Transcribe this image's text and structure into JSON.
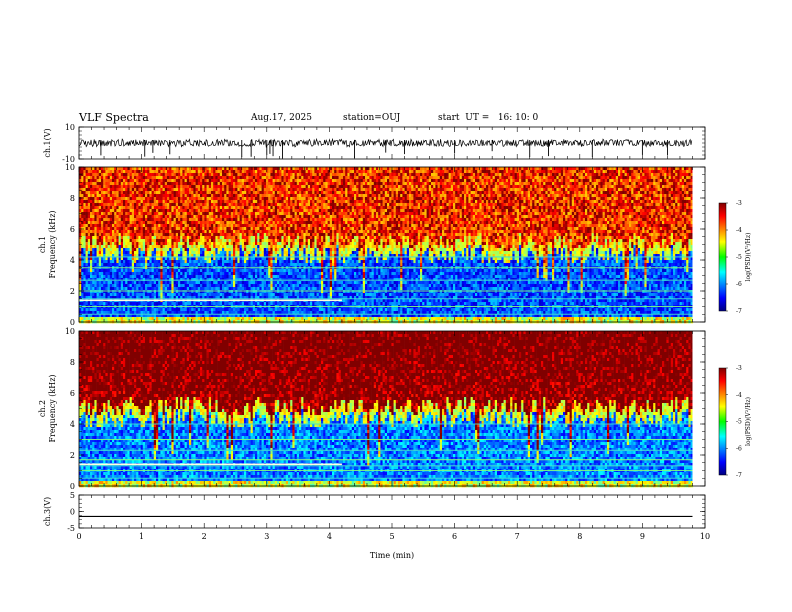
{
  "header": {
    "title": "VLF Spectra",
    "date": "Aug.17, 2025",
    "station": "station=OUJ",
    "start": "start  UT =   16: 10: 0"
  },
  "chart_data": [
    {
      "type": "line",
      "panel": "ch1-waveform",
      "ylabel": "ch.1(V)",
      "ylim": [
        -10,
        10
      ],
      "yticks": [
        "10",
        "-10"
      ],
      "xlim": [
        0,
        10
      ],
      "series": [
        {
          "values": "noisy waveform about 0 V with spikes, 0–9.8 min"
        }
      ],
      "color": "#000000"
    },
    {
      "type": "heatmap",
      "panel": "ch1-spectrogram",
      "ylabel": "ch.1\nFrequency (kHz)",
      "ylim": [
        0,
        10
      ],
      "yticks": [
        "0",
        "2",
        "4",
        "6",
        "8",
        "10"
      ],
      "xlim": [
        0,
        10
      ],
      "data_extent_min": 9.8,
      "colorbar": {
        "label": "log(PSD)(V²/Hz)",
        "range": [
          -7,
          -3
        ],
        "ticks": [
          "-3",
          "-4",
          "-5",
          "-6",
          "-7"
        ]
      },
      "description_levels": {
        "above_5kHz": -3.6,
        "below_5kHz": -6.2,
        "lines_kHz": [
          0.5,
          1.0,
          1.5,
          2.0,
          2.7,
          3.5,
          4.2
        ]
      }
    },
    {
      "type": "heatmap",
      "panel": "ch2-spectrogram",
      "ylabel": "ch.2\nFrequency (kHz)",
      "ylim": [
        0,
        10
      ],
      "yticks": [
        "0",
        "2",
        "4",
        "6",
        "8",
        "10"
      ],
      "xlim": [
        0,
        10
      ],
      "data_extent_min": 9.8,
      "colorbar": {
        "label": "log(PSD)(V²/Hz)",
        "range": [
          -7,
          -3
        ],
        "ticks": [
          "-3",
          "-4",
          "-5",
          "-6",
          "-7"
        ]
      },
      "description_levels": {
        "above_5kHz": -3.2,
        "below_5kHz": -6.0,
        "lines_kHz": [
          0.5,
          1.0,
          1.3,
          1.7,
          2.3,
          3.0,
          4.0
        ]
      }
    },
    {
      "type": "line",
      "panel": "ch3-waveform",
      "ylabel": "ch.3(V)",
      "ylim": [
        -5,
        5
      ],
      "yticks": [
        "5",
        "0",
        "-5"
      ],
      "xlim": [
        0,
        10
      ],
      "xticks": [
        "0",
        "1",
        "2",
        "3",
        "4",
        "5",
        "6",
        "7",
        "8",
        "9",
        "10"
      ],
      "xlabel": "Time (min)",
      "series": [
        {
          "values": [
            -1.5,
            -1.5
          ]
        }
      ],
      "color": "#000000"
    }
  ]
}
